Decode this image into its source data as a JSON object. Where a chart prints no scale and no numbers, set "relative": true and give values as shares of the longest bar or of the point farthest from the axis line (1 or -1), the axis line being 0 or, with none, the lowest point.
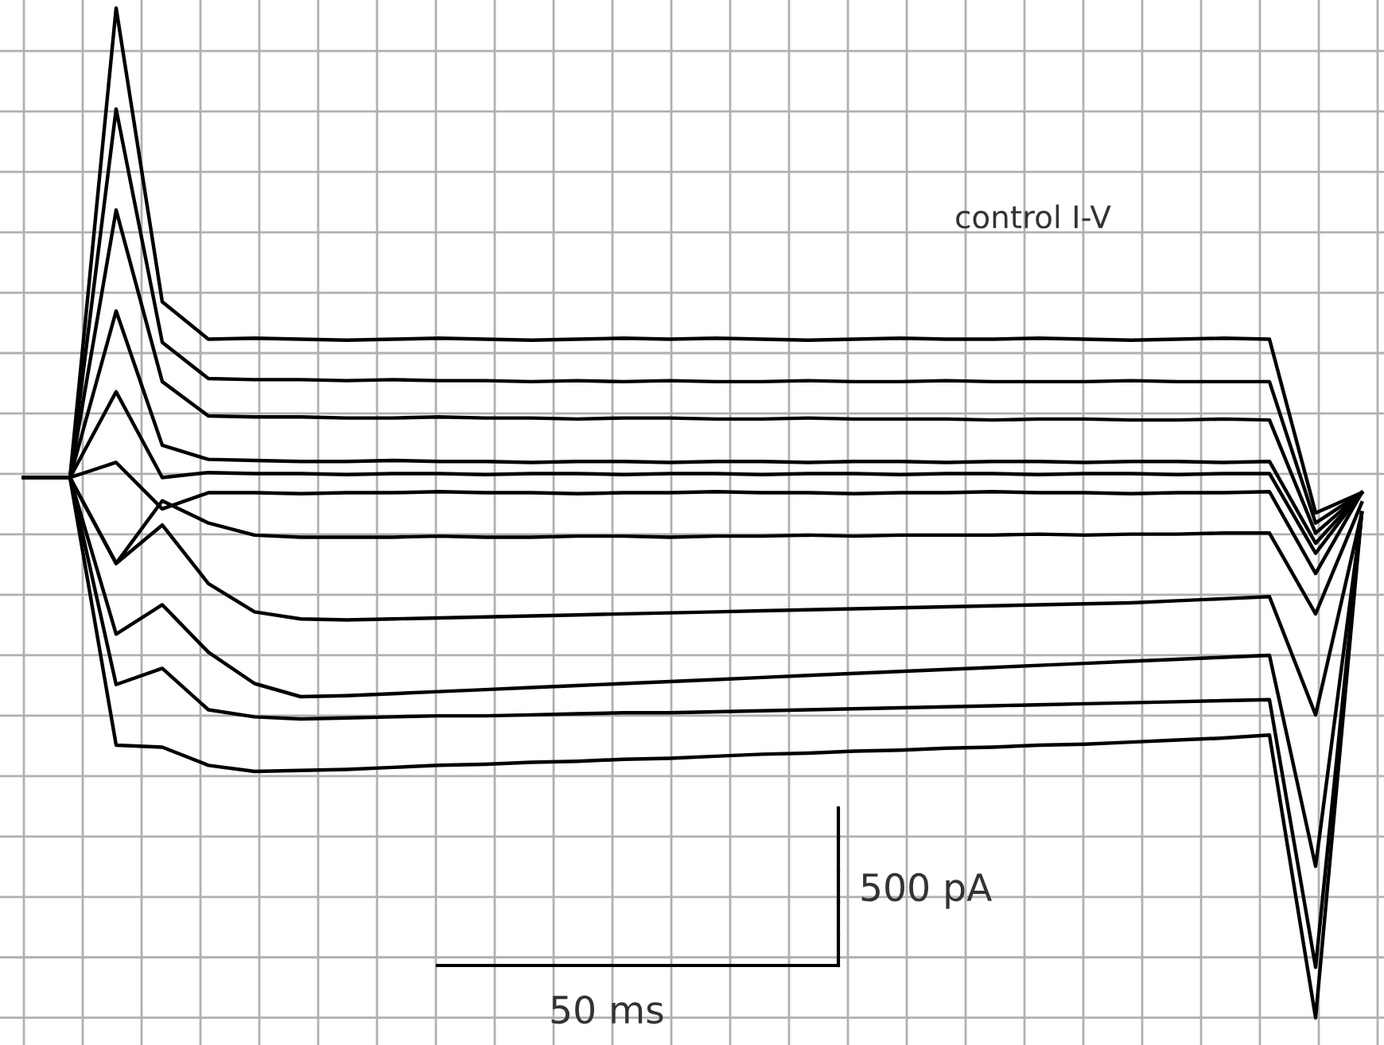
{
  "chart_data": {
    "type": "line",
    "relative": true,
    "grid": true,
    "legend": false,
    "tick_labels": false,
    "marker": "none",
    "line_style": "solid",
    "annotations": [
      "control I-V",
      "500 pA",
      "50 ms"
    ],
    "categories": [
      null,
      null,
      null,
      null,
      null,
      null,
      null,
      null,
      null,
      null,
      null,
      null,
      null,
      null,
      null,
      null,
      null,
      null,
      null,
      null,
      null,
      null,
      null,
      null,
      null,
      null,
      null,
      null,
      null,
      null
    ],
    "series": [
      {
        "color": "#000000",
        "values": [
          0.535,
          0.535,
          1.0,
          0.709,
          0.672,
          0.673,
          0.672,
          0.671,
          0.672,
          0.673,
          0.672,
          0.671,
          0.672,
          0.673,
          0.672,
          0.673,
          0.672,
          0.671,
          0.672,
          0.673,
          0.672,
          0.672,
          0.673,
          0.672,
          0.671,
          0.672,
          0.673,
          0.672,
          0.5,
          0.52
        ]
      },
      {
        "color": "#000000",
        "values": [
          0.535,
          0.535,
          0.9,
          0.669,
          0.633,
          0.632,
          0.632,
          0.631,
          0.632,
          0.631,
          0.631,
          0.63,
          0.631,
          0.63,
          0.631,
          0.63,
          0.63,
          0.631,
          0.63,
          0.63,
          0.631,
          0.63,
          0.63,
          0.63,
          0.631,
          0.63,
          0.63,
          0.63,
          0.49,
          0.52
        ]
      },
      {
        "color": "#000000",
        "values": [
          0.535,
          0.535,
          0.8,
          0.63,
          0.596,
          0.595,
          0.595,
          0.594,
          0.594,
          0.595,
          0.594,
          0.594,
          0.593,
          0.594,
          0.594,
          0.593,
          0.593,
          0.594,
          0.593,
          0.593,
          0.593,
          0.592,
          0.593,
          0.593,
          0.592,
          0.592,
          0.593,
          0.592,
          0.48,
          0.52
        ]
      },
      {
        "color": "#000000",
        "values": [
          0.535,
          0.535,
          0.7,
          0.567,
          0.553,
          0.552,
          0.551,
          0.551,
          0.552,
          0.551,
          0.551,
          0.55,
          0.551,
          0.551,
          0.55,
          0.551,
          0.551,
          0.55,
          0.551,
          0.551,
          0.55,
          0.551,
          0.551,
          0.55,
          0.551,
          0.551,
          0.55,
          0.551,
          0.47,
          0.52
        ]
      },
      {
        "color": "#000000",
        "values": [
          0.535,
          0.535,
          0.62,
          0.535,
          0.54,
          0.539,
          0.539,
          0.538,
          0.539,
          0.539,
          0.538,
          0.539,
          0.539,
          0.538,
          0.539,
          0.539,
          0.538,
          0.539,
          0.539,
          0.538,
          0.539,
          0.539,
          0.538,
          0.539,
          0.539,
          0.538,
          0.539,
          0.539,
          0.46,
          0.52
        ]
      },
      {
        "color": "#000000",
        "values": [
          0.535,
          0.535,
          0.55,
          0.504,
          0.52,
          0.52,
          0.519,
          0.52,
          0.52,
          0.521,
          0.52,
          0.52,
          0.519,
          0.52,
          0.52,
          0.521,
          0.52,
          0.52,
          0.519,
          0.52,
          0.52,
          0.521,
          0.52,
          0.52,
          0.519,
          0.52,
          0.52,
          0.521,
          0.44,
          0.52
        ]
      },
      {
        "color": "#000000",
        "values": [
          0.535,
          0.535,
          0.45,
          0.512,
          0.49,
          0.478,
          0.476,
          0.476,
          0.476,
          0.477,
          0.476,
          0.476,
          0.477,
          0.477,
          0.476,
          0.477,
          0.477,
          0.478,
          0.477,
          0.478,
          0.478,
          0.478,
          0.479,
          0.478,
          0.479,
          0.479,
          0.48,
          0.48,
          0.4,
          0.51
        ]
      },
      {
        "color": "#000000",
        "values": [
          0.535,
          0.535,
          0.45,
          0.488,
          0.43,
          0.402,
          0.395,
          0.394,
          0.395,
          0.396,
          0.397,
          0.398,
          0.399,
          0.4,
          0.401,
          0.402,
          0.403,
          0.404,
          0.405,
          0.406,
          0.407,
          0.408,
          0.409,
          0.41,
          0.411,
          0.413,
          0.415,
          0.417,
          0.3,
          0.5
        ]
      },
      {
        "color": "#000000",
        "values": [
          0.535,
          0.535,
          0.38,
          0.409,
          0.362,
          0.331,
          0.318,
          0.319,
          0.321,
          0.323,
          0.325,
          0.327,
          0.329,
          0.331,
          0.333,
          0.335,
          0.337,
          0.339,
          0.341,
          0.343,
          0.345,
          0.347,
          0.349,
          0.351,
          0.353,
          0.355,
          0.357,
          0.359,
          0.15,
          0.5
        ]
      },
      {
        "color": "#000000",
        "values": [
          0.535,
          0.535,
          0.33,
          0.346,
          0.305,
          0.298,
          0.296,
          0.297,
          0.298,
          0.299,
          0.299,
          0.3,
          0.301,
          0.302,
          0.302,
          0.303,
          0.304,
          0.305,
          0.306,
          0.307,
          0.308,
          0.309,
          0.31,
          0.311,
          0.312,
          0.313,
          0.314,
          0.315,
          0.05,
          0.5
        ]
      },
      {
        "color": "#000000",
        "values": [
          0.535,
          0.535,
          0.27,
          0.268,
          0.25,
          0.244,
          0.245,
          0.246,
          0.248,
          0.25,
          0.251,
          0.253,
          0.254,
          0.256,
          0.257,
          0.259,
          0.261,
          0.262,
          0.264,
          0.265,
          0.267,
          0.268,
          0.27,
          0.271,
          0.273,
          0.275,
          0.277,
          0.28,
          0.0,
          0.5
        ]
      }
    ]
  }
}
